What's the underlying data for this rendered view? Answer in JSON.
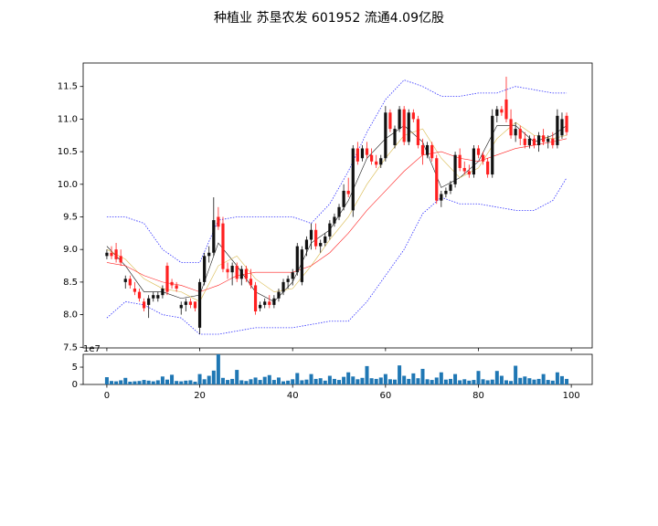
{
  "chart_data": [
    {
      "type": "candlestick",
      "title": "种植业 苏垦农发 601952 流通4.09亿股",
      "x": [
        0,
        1,
        2,
        3,
        4,
        5,
        6,
        7,
        8,
        9,
        10,
        11,
        12,
        13,
        14,
        15,
        16,
        17,
        18,
        19,
        20,
        21,
        22,
        23,
        24,
        25,
        26,
        27,
        28,
        29,
        30,
        31,
        32,
        33,
        34,
        35,
        36,
        37,
        38,
        39,
        40,
        41,
        42,
        43,
        44,
        45,
        46,
        47,
        48,
        49,
        50,
        51,
        52,
        53,
        54,
        55,
        56,
        57,
        58,
        59,
        60,
        61,
        62,
        63,
        64,
        65,
        66,
        67,
        68,
        69,
        70,
        71,
        72,
        73,
        74,
        75,
        76,
        77,
        78,
        79,
        80,
        81,
        82,
        83,
        84,
        85,
        86,
        87,
        88,
        89,
        90,
        91,
        92,
        93,
        94,
        95,
        96,
        97,
        98,
        99
      ],
      "ohlc": [
        [
          8.9,
          9.0,
          8.85,
          8.95
        ],
        [
          8.95,
          9.05,
          8.85,
          8.9
        ],
        [
          9.0,
          9.1,
          8.8,
          8.85
        ],
        [
          8.9,
          9.0,
          8.75,
          8.8
        ],
        [
          8.5,
          8.6,
          8.4,
          8.55
        ],
        [
          8.55,
          8.6,
          8.4,
          8.45
        ],
        [
          8.4,
          8.5,
          8.3,
          8.35
        ],
        [
          8.35,
          8.4,
          8.2,
          8.25
        ],
        [
          8.2,
          8.25,
          8.05,
          8.1
        ],
        [
          8.15,
          8.3,
          7.95,
          8.25
        ],
        [
          8.25,
          8.35,
          8.2,
          8.3
        ],
        [
          8.25,
          8.35,
          8.2,
          8.3
        ],
        [
          8.3,
          8.45,
          8.25,
          8.4
        ],
        [
          8.75,
          8.8,
          8.3,
          8.35
        ],
        [
          8.5,
          8.55,
          8.4,
          8.45
        ],
        [
          8.45,
          8.5,
          8.35,
          8.4
        ],
        [
          8.1,
          8.2,
          8.0,
          8.15
        ],
        [
          8.15,
          8.25,
          8.05,
          8.2
        ],
        [
          8.2,
          8.25,
          8.1,
          8.15
        ],
        [
          8.2,
          8.2,
          8.05,
          8.1
        ],
        [
          7.8,
          8.55,
          7.7,
          8.5
        ],
        [
          8.5,
          8.95,
          8.45,
          8.9
        ],
        [
          8.9,
          9.05,
          8.8,
          8.95
        ],
        [
          8.95,
          9.8,
          8.9,
          9.45
        ],
        [
          9.5,
          9.65,
          9.3,
          9.35
        ],
        [
          9.4,
          9.5,
          8.65,
          8.7
        ],
        [
          8.7,
          8.8,
          8.55,
          8.65
        ],
        [
          8.65,
          8.8,
          8.45,
          8.75
        ],
        [
          8.75,
          8.8,
          8.5,
          8.55
        ],
        [
          8.55,
          8.75,
          8.45,
          8.7
        ],
        [
          8.7,
          8.75,
          8.5,
          8.55
        ],
        [
          8.55,
          8.7,
          8.4,
          8.45
        ],
        [
          8.45,
          8.5,
          8.0,
          8.05
        ],
        [
          8.1,
          8.2,
          8.05,
          8.15
        ],
        [
          8.15,
          8.25,
          8.1,
          8.2
        ],
        [
          8.2,
          8.3,
          8.1,
          8.15
        ],
        [
          8.15,
          8.3,
          8.1,
          8.25
        ],
        [
          8.25,
          8.4,
          8.2,
          8.35
        ],
        [
          8.35,
          8.55,
          8.3,
          8.5
        ],
        [
          8.5,
          8.6,
          8.4,
          8.55
        ],
        [
          8.55,
          8.7,
          8.45,
          8.65
        ],
        [
          8.65,
          9.1,
          8.6,
          9.05
        ],
        [
          8.5,
          9.05,
          8.45,
          9.0
        ],
        [
          9.0,
          9.2,
          8.9,
          9.15
        ],
        [
          9.15,
          9.4,
          9.0,
          9.3
        ],
        [
          9.3,
          9.4,
          9.0,
          9.05
        ],
        [
          9.05,
          9.15,
          8.95,
          9.1
        ],
        [
          9.1,
          9.25,
          9.05,
          9.2
        ],
        [
          9.2,
          9.45,
          9.15,
          9.4
        ],
        [
          9.4,
          9.55,
          9.35,
          9.5
        ],
        [
          9.5,
          9.7,
          9.45,
          9.65
        ],
        [
          9.65,
          10.0,
          9.6,
          9.9
        ],
        [
          9.9,
          10.1,
          9.8,
          9.85
        ],
        [
          9.6,
          10.6,
          9.5,
          10.55
        ],
        [
          10.55,
          10.65,
          10.3,
          10.35
        ],
        [
          10.4,
          10.6,
          10.35,
          10.55
        ],
        [
          10.55,
          10.65,
          10.4,
          10.45
        ],
        [
          10.45,
          10.55,
          10.3,
          10.35
        ],
        [
          10.35,
          10.45,
          10.25,
          10.3
        ],
        [
          10.3,
          10.45,
          10.25,
          10.4
        ],
        [
          10.4,
          11.2,
          10.35,
          11.1
        ],
        [
          11.1,
          11.15,
          10.8,
          10.85
        ],
        [
          10.6,
          10.9,
          10.55,
          10.85
        ],
        [
          10.85,
          11.2,
          10.8,
          11.15
        ],
        [
          11.15,
          11.2,
          10.6,
          10.65
        ],
        [
          10.65,
          11.15,
          10.6,
          11.1
        ],
        [
          11.1,
          11.15,
          10.95,
          11.0
        ],
        [
          11.0,
          11.05,
          10.55,
          10.6
        ],
        [
          10.6,
          10.7,
          10.3,
          10.45
        ],
        [
          10.45,
          10.65,
          10.4,
          10.6
        ],
        [
          10.6,
          10.65,
          10.35,
          10.4
        ],
        [
          10.4,
          10.45,
          9.7,
          9.75
        ],
        [
          9.75,
          9.9,
          9.65,
          9.85
        ],
        [
          9.85,
          9.95,
          9.8,
          9.9
        ],
        [
          9.9,
          10.05,
          9.85,
          10.0
        ],
        [
          10.0,
          10.5,
          9.95,
          10.45
        ],
        [
          10.45,
          10.55,
          10.2,
          10.25
        ],
        [
          10.25,
          10.35,
          10.15,
          10.2
        ],
        [
          10.2,
          10.3,
          10.1,
          10.15
        ],
        [
          10.15,
          10.6,
          10.1,
          10.55
        ],
        [
          10.55,
          10.6,
          10.4,
          10.45
        ],
        [
          10.45,
          10.5,
          10.3,
          10.35
        ],
        [
          10.35,
          10.4,
          10.1,
          10.15
        ],
        [
          10.15,
          11.15,
          10.1,
          11.05
        ],
        [
          11.05,
          11.2,
          10.95,
          11.15
        ],
        [
          11.15,
          11.2,
          11.05,
          11.1
        ],
        [
          11.3,
          11.65,
          10.95,
          11.0
        ],
        [
          11.0,
          11.15,
          10.7,
          10.75
        ],
        [
          10.75,
          10.95,
          10.65,
          10.85
        ],
        [
          10.85,
          10.9,
          10.6,
          10.7
        ],
        [
          10.7,
          10.8,
          10.55,
          10.6
        ],
        [
          10.6,
          10.75,
          10.55,
          10.7
        ],
        [
          10.7,
          10.75,
          10.55,
          10.6
        ],
        [
          10.6,
          10.8,
          10.5,
          10.75
        ],
        [
          10.75,
          10.85,
          10.6,
          10.65
        ],
        [
          10.65,
          10.75,
          10.55,
          10.7
        ],
        [
          10.7,
          10.8,
          10.55,
          10.6
        ],
        [
          10.6,
          11.15,
          10.55,
          11.05
        ],
        [
          10.75,
          11.1,
          10.7,
          11.0
        ],
        [
          11.05,
          11.1,
          10.75,
          10.8
        ]
      ],
      "up_color": "#111111",
      "down_color": "#ff2020",
      "lines": {
        "x": [
          0,
          4,
          8,
          12,
          16,
          20,
          24,
          28,
          32,
          36,
          40,
          44,
          48,
          52,
          56,
          60,
          64,
          68,
          72,
          76,
          80,
          84,
          88,
          92,
          96,
          99
        ],
        "series": [
          {
            "color": "#111111",
            "style": "solid",
            "values": [
              9.05,
              8.75,
              8.35,
              8.35,
              8.25,
              8.3,
              9.1,
              8.75,
              8.35,
              8.2,
              8.5,
              9.1,
              9.3,
              9.75,
              10.4,
              10.7,
              10.9,
              10.65,
              9.95,
              10.1,
              10.35,
              10.9,
              10.9,
              10.65,
              10.75,
              10.9
            ]
          },
          {
            "color": "#d8b84a",
            "style": "solid",
            "values": [
              9.0,
              8.85,
              8.55,
              8.4,
              8.35,
              8.2,
              8.75,
              8.9,
              8.55,
              8.35,
              8.4,
              8.75,
              9.15,
              9.5,
              10.0,
              10.4,
              10.75,
              10.85,
              10.4,
              10.1,
              10.25,
              10.7,
              10.95,
              10.75,
              10.7,
              10.75
            ]
          },
          {
            "color": "#ff2020",
            "style": "solid",
            "values": [
              8.8,
              8.75,
              8.6,
              8.5,
              8.45,
              8.35,
              8.45,
              8.6,
              8.65,
              8.65,
              8.65,
              8.75,
              8.95,
              9.25,
              9.6,
              9.9,
              10.2,
              10.45,
              10.5,
              10.4,
              10.35,
              10.45,
              10.55,
              10.6,
              10.65,
              10.7
            ]
          },
          {
            "color": "#3030ff",
            "style": "dotted",
            "values": [
              9.5,
              9.5,
              9.4,
              9.0,
              8.8,
              8.8,
              9.45,
              9.5,
              9.5,
              9.5,
              9.5,
              9.4,
              9.7,
              10.2,
              10.8,
              11.3,
              11.6,
              11.5,
              11.35,
              11.35,
              11.4,
              11.4,
              11.5,
              11.45,
              11.4,
              11.4
            ]
          },
          {
            "color": "#3030ff",
            "style": "dotted",
            "values": [
              7.95,
              8.2,
              8.15,
              8.0,
              7.95,
              7.7,
              7.7,
              7.75,
              7.8,
              7.8,
              7.8,
              7.85,
              7.9,
              7.9,
              8.2,
              8.6,
              9.0,
              9.55,
              9.8,
              9.7,
              9.7,
              9.65,
              9.6,
              9.6,
              9.75,
              10.1
            ]
          }
        ]
      },
      "xlim": [
        -5.1,
        104.5
      ],
      "xticks": [
        0,
        20,
        40,
        60,
        80,
        100
      ],
      "ylim": [
        7.49,
        11.86
      ],
      "yticks": [
        7.5,
        {
          "value": 8,
          "label": "8.0"
        },
        8.5,
        {
          "value": 9,
          "label": "9.0"
        },
        9.5,
        {
          "value": 10,
          "label": "10.0"
        },
        10.5,
        {
          "value": 11,
          "label": "11.0"
        },
        11.5
      ]
    },
    {
      "type": "bar",
      "x": [
        0,
        1,
        2,
        3,
        4,
        5,
        6,
        7,
        8,
        9,
        10,
        11,
        12,
        13,
        14,
        15,
        16,
        17,
        18,
        19,
        20,
        21,
        22,
        23,
        24,
        25,
        26,
        27,
        28,
        29,
        30,
        31,
        32,
        33,
        34,
        35,
        36,
        37,
        38,
        39,
        40,
        41,
        42,
        43,
        44,
        45,
        46,
        47,
        48,
        49,
        50,
        51,
        52,
        53,
        54,
        55,
        56,
        57,
        58,
        59,
        60,
        61,
        62,
        63,
        64,
        65,
        66,
        67,
        68,
        69,
        70,
        71,
        72,
        73,
        74,
        75,
        76,
        77,
        78,
        79,
        80,
        81,
        82,
        83,
        84,
        85,
        86,
        87,
        88,
        89,
        90,
        91,
        92,
        93,
        94,
        95,
        96,
        97,
        98,
        99
      ],
      "values": [
        2.1,
        1.0,
        0.9,
        1.2,
        1.9,
        0.8,
        0.9,
        1.0,
        1.3,
        1.1,
        0.9,
        1.2,
        2.3,
        1.4,
        2.8,
        1.0,
        0.9,
        1.1,
        1.2,
        0.8,
        3.0,
        1.5,
        2.5,
        4.0,
        8.7,
        1.9,
        1.3,
        1.6,
        4.2,
        1.2,
        1.0,
        1.5,
        2.0,
        1.3,
        2.2,
        2.7,
        1.3,
        2.0,
        0.9,
        1.1,
        1.5,
        3.3,
        1.2,
        1.4,
        3.0,
        1.6,
        1.8,
        1.1,
        2.5,
        1.6,
        1.3,
        2.2,
        3.5,
        2.3,
        1.5,
        1.9,
        5.3,
        1.8,
        1.6,
        2.0,
        3.0,
        1.5,
        1.4,
        5.5,
        2.5,
        1.6,
        3.2,
        1.8,
        4.5,
        1.5,
        1.3,
        2.0,
        3.5,
        1.4,
        1.6,
        3.0,
        1.2,
        1.5,
        1.1,
        1.3,
        3.9,
        1.5,
        1.2,
        1.4,
        3.9,
        2.5,
        1.2,
        1.0,
        5.4,
        1.9,
        2.3,
        1.8,
        1.4,
        1.6,
        3.0,
        1.3,
        1.1,
        3.5,
        2.4,
        1.6
      ],
      "color": "#1f77b4",
      "offset_label": "1e7",
      "xlim": [
        -5.1,
        104.5
      ],
      "xticks": [
        0,
        20,
        40,
        60,
        80,
        100
      ],
      "ylim": [
        0,
        8.7
      ],
      "yticks": [
        0,
        5
      ]
    }
  ]
}
